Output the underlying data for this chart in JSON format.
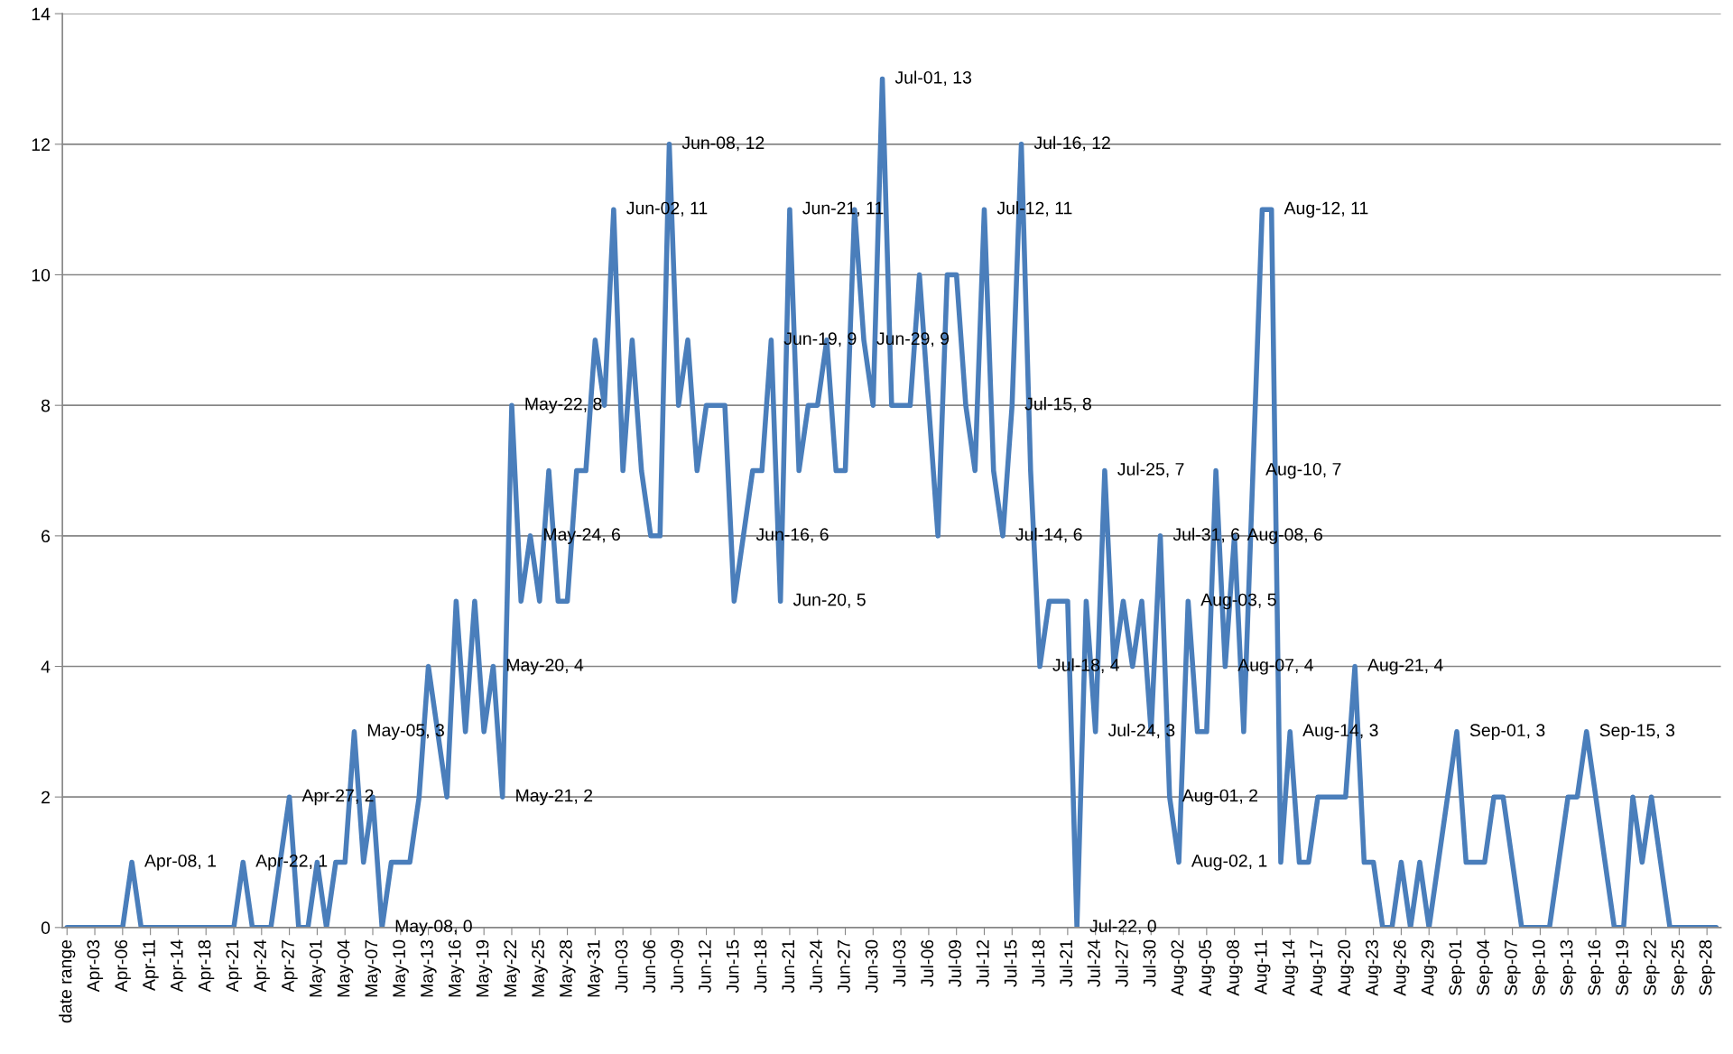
{
  "chart_data": {
    "type": "line",
    "categories": [
      "date range",
      null,
      null,
      "Apr-03",
      null,
      null,
      "Apr-06",
      null,
      null,
      "Apr-11",
      null,
      null,
      "Apr-14",
      null,
      null,
      "Apr-18",
      null,
      null,
      "Apr-21",
      null,
      null,
      "Apr-24",
      null,
      null,
      "Apr-27",
      null,
      null,
      "May-01",
      null,
      null,
      "May-04",
      null,
      null,
      "May-07",
      null,
      null,
      "May-10",
      null,
      null,
      "May-13",
      null,
      null,
      "May-16",
      null,
      null,
      "May-19",
      null,
      null,
      "May-22",
      null,
      null,
      "May-25",
      null,
      null,
      "May-28",
      null,
      null,
      "May-31",
      null,
      null,
      "Jun-03",
      null,
      null,
      "Jun-06",
      null,
      null,
      "Jun-09",
      null,
      null,
      "Jun-12",
      null,
      null,
      "Jun-15",
      null,
      null,
      "Jun-18",
      null,
      null,
      "Jun-21",
      null,
      null,
      "Jun-24",
      null,
      null,
      "Jun-27",
      null,
      null,
      "Jun-30",
      null,
      null,
      "Jul-03",
      null,
      null,
      "Jul-06",
      null,
      null,
      "Jul-09",
      null,
      null,
      "Jul-12",
      null,
      null,
      "Jul-15",
      null,
      null,
      "Jul-18",
      null,
      null,
      "Jul-21",
      null,
      null,
      "Jul-24",
      null,
      null,
      "Jul-27",
      null,
      null,
      "Jul-30",
      null,
      null,
      "Aug-02",
      null,
      null,
      "Aug-05",
      null,
      null,
      "Aug-08",
      null,
      null,
      "Aug-11",
      null,
      null,
      "Aug-14",
      null,
      null,
      "Aug-17",
      null,
      null,
      "Aug-20",
      null,
      null,
      "Aug-23",
      null,
      null,
      "Aug-26",
      null,
      null,
      "Aug-29",
      null,
      null,
      "Sep-01",
      null,
      null,
      "Sep-04",
      null,
      null,
      "Sep-07",
      null,
      null,
      "Sep-10",
      null,
      null,
      "Sep-13",
      null,
      null,
      "Sep-16",
      null,
      null,
      "Sep-19",
      null,
      null,
      "Sep-22",
      null,
      null,
      "Sep-25",
      null,
      null,
      "Sep-28",
      null
    ],
    "values": [
      0,
      0,
      0,
      0,
      0,
      0,
      0,
      1,
      0,
      0,
      0,
      0,
      0,
      0,
      0,
      0,
      0,
      0,
      0,
      1,
      0,
      0,
      0,
      1,
      2,
      0,
      0,
      1,
      0,
      1,
      1,
      3,
      1,
      2,
      0,
      1,
      1,
      1,
      2,
      4,
      3,
      2,
      5,
      3,
      5,
      3,
      4,
      2,
      8,
      5,
      6,
      5,
      7,
      5,
      5,
      7,
      7,
      9,
      8,
      11,
      7,
      9,
      7,
      6,
      6,
      12,
      8,
      9,
      7,
      8,
      8,
      8,
      5,
      6,
      7,
      7,
      9,
      5,
      11,
      7,
      8,
      8,
      9,
      7,
      7,
      11,
      9,
      8,
      13,
      8,
      8,
      8,
      10,
      8,
      6,
      10,
      10,
      8,
      7,
      11,
      7,
      6,
      8,
      12,
      7,
      4,
      5,
      5,
      5,
      0,
      5,
      3,
      7,
      4,
      5,
      4,
      5,
      3,
      6,
      2,
      1,
      5,
      3,
      3,
      7,
      4,
      6,
      3,
      7,
      11,
      11,
      1,
      3,
      1,
      1,
      2,
      2,
      2,
      2,
      4,
      1,
      1,
      0,
      0,
      1,
      0,
      1,
      0,
      1,
      2,
      3,
      1,
      1,
      1,
      2,
      2,
      1,
      0,
      0,
      0,
      0,
      1,
      2,
      2,
      3,
      2,
      1,
      0,
      0,
      2,
      1,
      2,
      1,
      0,
      0,
      0,
      0,
      0,
      0
    ],
    "value_labels": [
      null,
      null,
      null,
      null,
      null,
      null,
      null,
      "Apr-08, 1",
      null,
      null,
      null,
      null,
      null,
      null,
      null,
      null,
      null,
      null,
      null,
      "Apr-22, 1",
      null,
      null,
      null,
      null,
      "Apr-27, 2",
      null,
      null,
      null,
      null,
      null,
      null,
      "May-05, 3",
      null,
      null,
      "May-08, 0",
      null,
      null,
      null,
      null,
      null,
      null,
      null,
      null,
      null,
      null,
      null,
      "May-20, 4",
      "May-21, 2",
      "May-22, 8",
      null,
      "May-24, 6",
      null,
      null,
      null,
      null,
      null,
      null,
      null,
      null,
      "Jun-02, 11",
      null,
      null,
      null,
      null,
      null,
      "Jun-08, 12",
      null,
      null,
      null,
      null,
      null,
      null,
      null,
      "Jun-16, 6",
      null,
      null,
      "Jun-19, 9",
      "Jun-20, 5",
      "Jun-21, 11",
      null,
      null,
      null,
      null,
      null,
      null,
      null,
      "Jun-29, 9",
      null,
      "Jul-01, 13",
      null,
      null,
      null,
      null,
      null,
      null,
      null,
      null,
      null,
      null,
      "Jul-12, 11",
      null,
      "Jul-14, 6",
      "Jul-15, 8",
      "Jul-16, 12",
      null,
      "Jul-18, 4",
      null,
      null,
      null,
      "Jul-22, 0",
      null,
      "Jul-24, 3",
      "Jul-25, 7",
      null,
      null,
      null,
      null,
      null,
      "Jul-31, 6",
      "Aug-01, 2",
      "Aug-02, 1",
      "Aug-03, 5",
      null,
      null,
      null,
      "Aug-07, 4",
      "Aug-08, 6",
      null,
      "Aug-10, 7",
      null,
      "Aug-12, 11",
      null,
      "Aug-14, 3",
      null,
      null,
      null,
      null,
      null,
      null,
      "Aug-21, 4",
      null,
      null,
      null,
      null,
      null,
      null,
      null,
      null,
      null,
      null,
      "Sep-01, 3",
      null,
      null,
      null,
      null,
      null,
      null,
      null,
      null,
      null,
      null,
      null,
      null,
      null,
      "Sep-15, 3",
      null,
      null,
      null,
      null,
      null,
      null,
      null,
      null,
      null,
      null,
      null,
      null,
      null,
      null
    ],
    "color": "#4a7ebb",
    "ylim": [
      0,
      14
    ],
    "yticks": [
      0,
      2,
      4,
      6,
      8,
      10,
      12,
      14
    ],
    "grid": "y"
  }
}
